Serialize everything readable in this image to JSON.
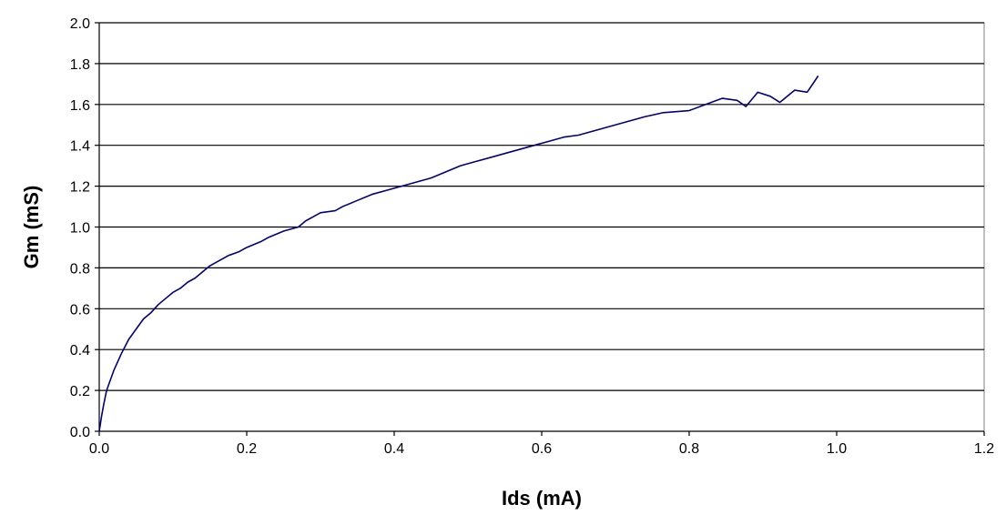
{
  "chart_data": {
    "type": "line",
    "title": "",
    "xlabel": "Ids (mA)",
    "ylabel": "Gm (mS)",
    "xlim": [
      0.0,
      1.2
    ],
    "ylim": [
      0.0,
      2.0
    ],
    "xticks": [
      "0.0",
      "0.2",
      "0.4",
      "0.6",
      "0.8",
      "1.0",
      "1.2"
    ],
    "yticks": [
      "0.0",
      "0.2",
      "0.4",
      "0.6",
      "0.8",
      "1.0",
      "1.2",
      "1.4",
      "1.6",
      "1.8",
      "2.0"
    ],
    "grid": "horizontal",
    "line_color": "#000080",
    "series": [
      {
        "x": [
          0.0,
          0.003,
          0.006,
          0.01,
          0.015,
          0.02,
          0.03,
          0.04,
          0.05,
          0.06,
          0.07,
          0.08,
          0.09,
          0.1,
          0.11,
          0.12,
          0.13,
          0.14,
          0.15,
          0.16,
          0.175,
          0.19,
          0.2,
          0.22,
          0.23,
          0.25,
          0.27,
          0.28,
          0.29,
          0.3,
          0.32,
          0.33,
          0.35,
          0.37,
          0.39,
          0.41,
          0.43,
          0.45,
          0.47,
          0.49,
          0.51,
          0.53,
          0.55,
          0.57,
          0.59,
          0.61,
          0.63,
          0.65,
          0.68,
          0.7,
          0.72,
          0.74,
          0.765,
          0.8,
          0.815,
          0.83,
          0.845,
          0.865,
          0.877,
          0.893,
          0.91,
          0.923,
          0.943,
          0.96,
          0.975
        ],
        "y": [
          0.0,
          0.07,
          0.13,
          0.2,
          0.25,
          0.3,
          0.38,
          0.45,
          0.5,
          0.55,
          0.58,
          0.62,
          0.65,
          0.68,
          0.7,
          0.73,
          0.75,
          0.78,
          0.81,
          0.83,
          0.86,
          0.88,
          0.9,
          0.93,
          0.95,
          0.98,
          1.0,
          1.03,
          1.05,
          1.07,
          1.08,
          1.1,
          1.13,
          1.16,
          1.18,
          1.2,
          1.22,
          1.24,
          1.27,
          1.3,
          1.32,
          1.34,
          1.36,
          1.38,
          1.4,
          1.42,
          1.44,
          1.45,
          1.48,
          1.5,
          1.52,
          1.54,
          1.56,
          1.57,
          1.59,
          1.61,
          1.63,
          1.62,
          1.59,
          1.66,
          1.64,
          1.61,
          1.67,
          1.66,
          1.74
        ]
      }
    ]
  }
}
